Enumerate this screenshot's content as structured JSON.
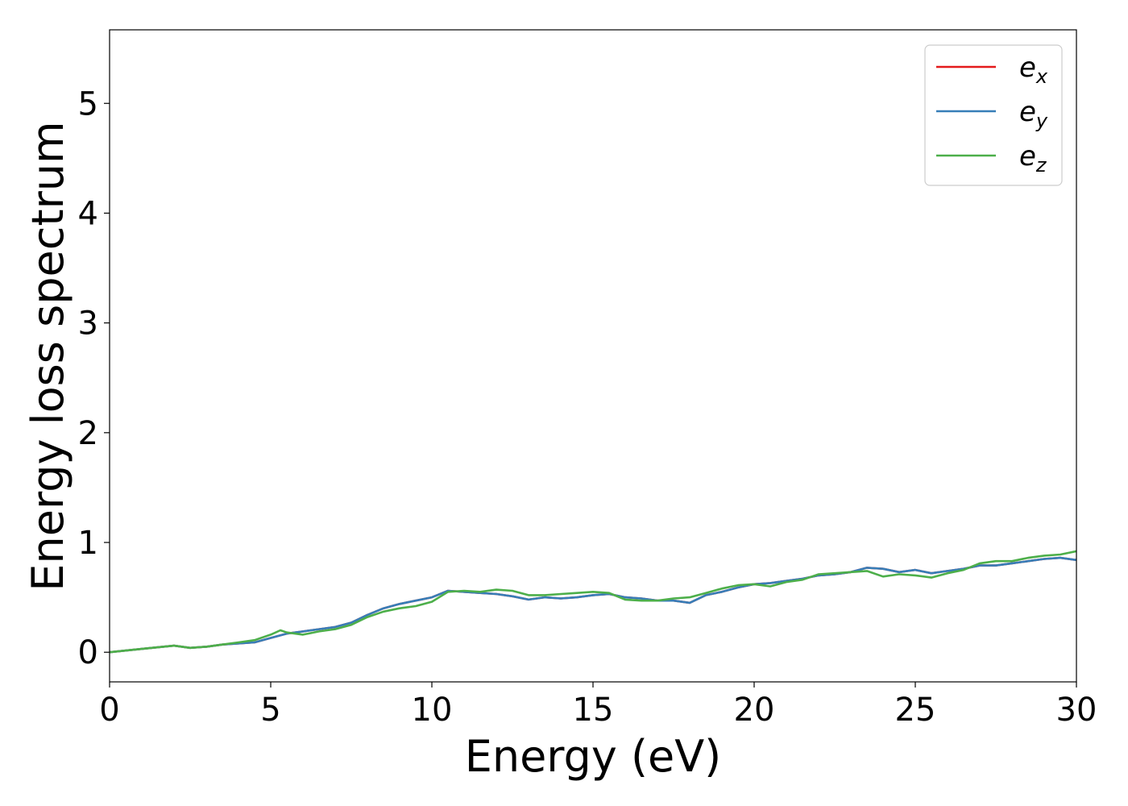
{
  "chart_data": {
    "type": "line",
    "title": "",
    "xlabel": "Energy (eV)",
    "ylabel": "Energy loss spectrum",
    "xlim": [
      0,
      30
    ],
    "ylim": [
      -0.27,
      5.67
    ],
    "xticks": [
      0,
      5,
      10,
      15,
      20,
      25,
      30
    ],
    "yticks": [
      0,
      1,
      2,
      3,
      4,
      5
    ],
    "grid": false,
    "legend_position": "top-right",
    "series": [
      {
        "name": "e_x",
        "label_base": "e",
        "label_sub": "x",
        "color": "#e41a1c",
        "x": [
          0,
          1,
          2,
          2.5,
          3,
          3.5,
          4,
          4.5,
          5,
          5.5,
          6,
          6.5,
          7,
          7.5,
          8,
          8.5,
          9,
          9.5,
          10,
          10.5,
          11,
          11.5,
          12,
          12.5,
          13,
          13.5,
          14,
          14.5,
          15,
          15.5,
          16,
          16.5,
          17,
          17.5,
          18,
          18.5,
          19,
          19.5,
          20,
          20.5,
          21,
          21.5,
          22,
          22.5,
          23,
          23.5,
          24,
          24.5,
          25,
          25.5,
          26,
          26.5,
          27,
          27.5,
          28,
          28.5,
          29,
          29.5,
          30
        ],
        "y": [
          0.0,
          0.03,
          0.06,
          0.04,
          0.05,
          0.07,
          0.08,
          0.09,
          0.13,
          0.17,
          0.19,
          0.21,
          0.23,
          0.27,
          0.34,
          0.4,
          0.44,
          0.47,
          0.5,
          0.56,
          0.55,
          0.54,
          0.53,
          0.51,
          0.48,
          0.5,
          0.49,
          0.5,
          0.52,
          0.53,
          0.5,
          0.49,
          0.47,
          0.47,
          0.45,
          0.52,
          0.55,
          0.59,
          0.62,
          0.63,
          0.65,
          0.67,
          0.7,
          0.71,
          0.73,
          0.77,
          0.76,
          0.73,
          0.75,
          0.72,
          0.74,
          0.76,
          0.79,
          0.79,
          0.81,
          0.83,
          0.85,
          0.86,
          0.84
        ]
      },
      {
        "name": "e_y",
        "label_base": "e",
        "label_sub": "y",
        "color": "#377eb8",
        "x": [
          0,
          1,
          2,
          2.5,
          3,
          3.5,
          4,
          4.5,
          5,
          5.5,
          6,
          6.5,
          7,
          7.5,
          8,
          8.5,
          9,
          9.5,
          10,
          10.5,
          11,
          11.5,
          12,
          12.5,
          13,
          13.5,
          14,
          14.5,
          15,
          15.5,
          16,
          16.5,
          17,
          17.5,
          18,
          18.5,
          19,
          19.5,
          20,
          20.5,
          21,
          21.5,
          22,
          22.5,
          23,
          23.5,
          24,
          24.5,
          25,
          25.5,
          26,
          26.5,
          27,
          27.5,
          28,
          28.5,
          29,
          29.5,
          30
        ],
        "y": [
          0.0,
          0.03,
          0.06,
          0.04,
          0.05,
          0.07,
          0.08,
          0.09,
          0.13,
          0.17,
          0.19,
          0.21,
          0.23,
          0.27,
          0.34,
          0.4,
          0.44,
          0.47,
          0.5,
          0.56,
          0.55,
          0.54,
          0.53,
          0.51,
          0.48,
          0.5,
          0.49,
          0.5,
          0.52,
          0.53,
          0.5,
          0.49,
          0.47,
          0.47,
          0.45,
          0.52,
          0.55,
          0.59,
          0.62,
          0.63,
          0.65,
          0.67,
          0.7,
          0.71,
          0.73,
          0.77,
          0.76,
          0.73,
          0.75,
          0.72,
          0.74,
          0.76,
          0.79,
          0.79,
          0.81,
          0.83,
          0.85,
          0.86,
          0.84
        ]
      },
      {
        "name": "e_z",
        "label_base": "e",
        "label_sub": "z",
        "color": "#4daf4a",
        "x": [
          0,
          1,
          2,
          2.5,
          3,
          3.5,
          4,
          4.5,
          5,
          5.3,
          5.5,
          6,
          6.5,
          7,
          7.5,
          8,
          8.5,
          9,
          9.5,
          10,
          10.5,
          11,
          11.5,
          12,
          12.5,
          13,
          13.5,
          14,
          14.5,
          15,
          15.5,
          16,
          16.5,
          17,
          17.5,
          18,
          18.5,
          19,
          19.5,
          20,
          20.5,
          21,
          21.5,
          22,
          22.5,
          23,
          23.5,
          24,
          24.5,
          25,
          25.5,
          26,
          26.5,
          27,
          27.5,
          28,
          28.5,
          29,
          29.5,
          30
        ],
        "y": [
          0.0,
          0.03,
          0.06,
          0.04,
          0.05,
          0.07,
          0.09,
          0.11,
          0.16,
          0.2,
          0.18,
          0.16,
          0.19,
          0.21,
          0.25,
          0.32,
          0.37,
          0.4,
          0.42,
          0.46,
          0.55,
          0.56,
          0.55,
          0.57,
          0.56,
          0.52,
          0.52,
          0.53,
          0.54,
          0.55,
          0.54,
          0.48,
          0.47,
          0.47,
          0.49,
          0.5,
          0.54,
          0.58,
          0.61,
          0.62,
          0.6,
          0.64,
          0.66,
          0.71,
          0.72,
          0.73,
          0.74,
          0.69,
          0.71,
          0.7,
          0.68,
          0.72,
          0.75,
          0.81,
          0.83,
          0.83,
          0.86,
          0.88,
          0.89,
          0.92
        ]
      }
    ]
  }
}
